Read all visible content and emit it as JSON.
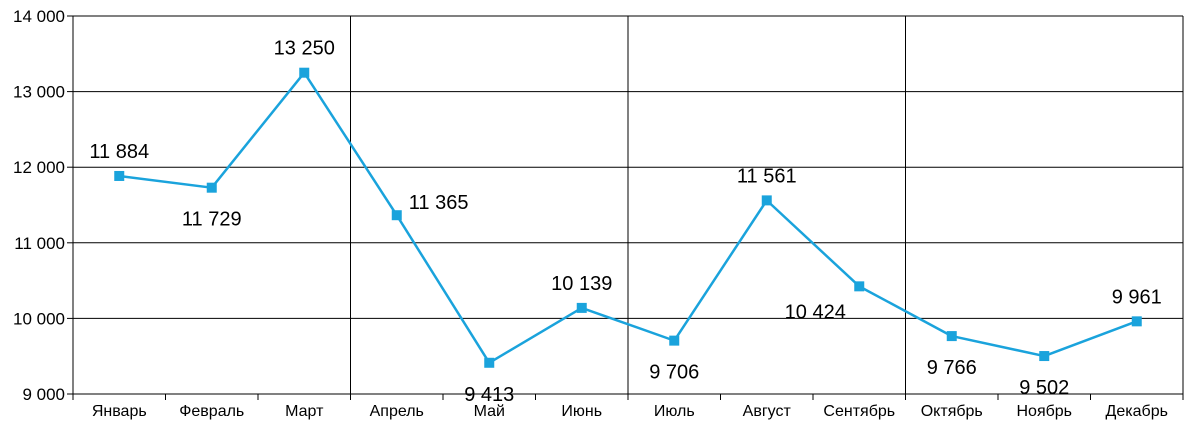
{
  "chart_data": {
    "type": "line",
    "title": "",
    "xlabel": "",
    "ylabel": "",
    "categories": [
      "Январь",
      "Февраль",
      "Март",
      "Апрель",
      "Май",
      "Июнь",
      "Июль",
      "Август",
      "Сентябрь",
      "Октябрь",
      "Ноябрь",
      "Декабрь"
    ],
    "values": [
      11884,
      11729,
      13250,
      11365,
      9413,
      10139,
      9706,
      11561,
      10424,
      9766,
      9502,
      9961
    ],
    "data_labels": [
      "11 884",
      "11 729",
      "13 250",
      "11 365",
      "9 413",
      "10 139",
      "9 706",
      "11 561",
      "10 424",
      "9 766",
      "9 502",
      "9 961"
    ],
    "ylim": [
      9000,
      14000
    ],
    "yticks": [
      9000,
      10000,
      11000,
      12000,
      13000,
      14000
    ],
    "ytick_labels": [
      "9 000",
      "10 000",
      "11 000",
      "12 000",
      "13 000",
      "14 000"
    ],
    "grid": "horizontal lines plus vertical lines every 3 months",
    "legend": "none",
    "colors": {
      "line": "#1aa3dc",
      "marker": "#1aa3dc",
      "grid": "#000000"
    }
  }
}
